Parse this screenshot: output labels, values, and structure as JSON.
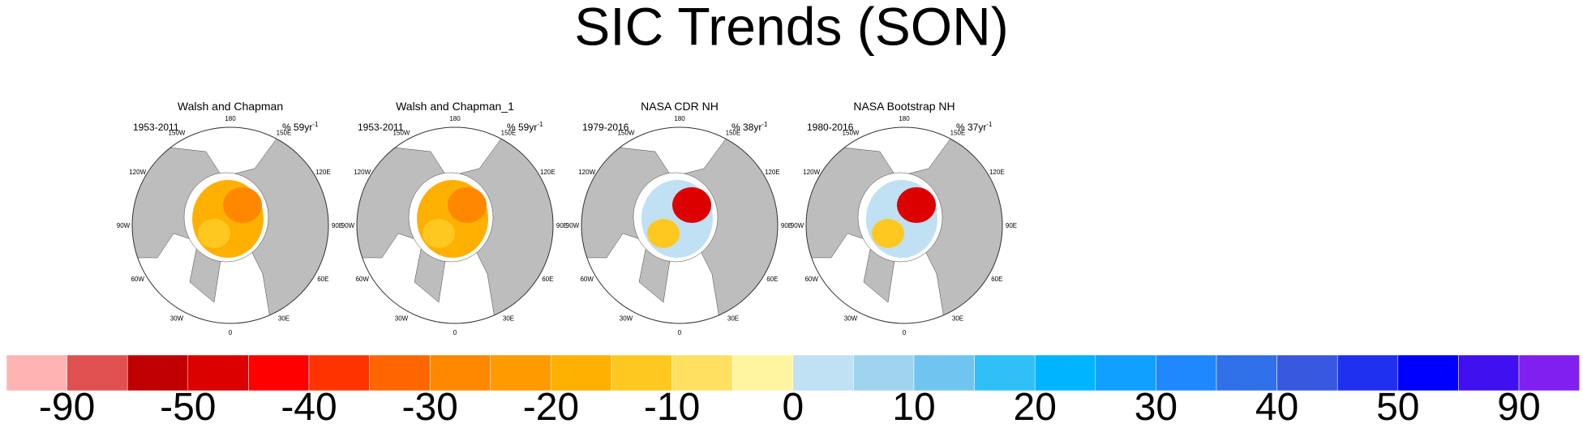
{
  "title": "SIC Trends (SON)",
  "panels": [
    {
      "title": "Walsh and Chapman",
      "period": "1953-2011",
      "units": "% 59yr",
      "units_exp": "-1"
    },
    {
      "title": "Walsh and Chapman_1",
      "period": "1953-2011",
      "units": "% 59yr",
      "units_exp": "-1"
    },
    {
      "title": "NASA CDR NH",
      "period": "1979-2016",
      "units": "% 38yr",
      "units_exp": "-1"
    },
    {
      "title": "NASA Bootstrap NH",
      "period": "1980-2016",
      "units": "% 37yr",
      "units_exp": "-1"
    }
  ],
  "longitude_labels": [
    "180",
    "150E",
    "120E",
    "90E",
    "60E",
    "30E",
    "0",
    "30W",
    "60W",
    "90W",
    "120W",
    "150W"
  ],
  "colorbar": {
    "colors": [
      "#ffb3b3",
      "#e05050",
      "#c00000",
      "#dd0000",
      "#ff0000",
      "#ff3300",
      "#ff6600",
      "#ff8800",
      "#ff9a00",
      "#ffb000",
      "#ffc820",
      "#ffe060",
      "#fff5a0",
      "#c0e0f4",
      "#a0d4ee",
      "#70c4f0",
      "#30c0f8",
      "#00b4ff",
      "#10a0ff",
      "#2088ff",
      "#3070e8",
      "#3858e0",
      "#2030f0",
      "#0000ff",
      "#4010f0",
      "#8020f0"
    ],
    "labels": [
      -90,
      -50,
      -40,
      -30,
      -20,
      -10,
      0,
      10,
      20,
      30,
      40,
      50,
      90
    ]
  }
}
